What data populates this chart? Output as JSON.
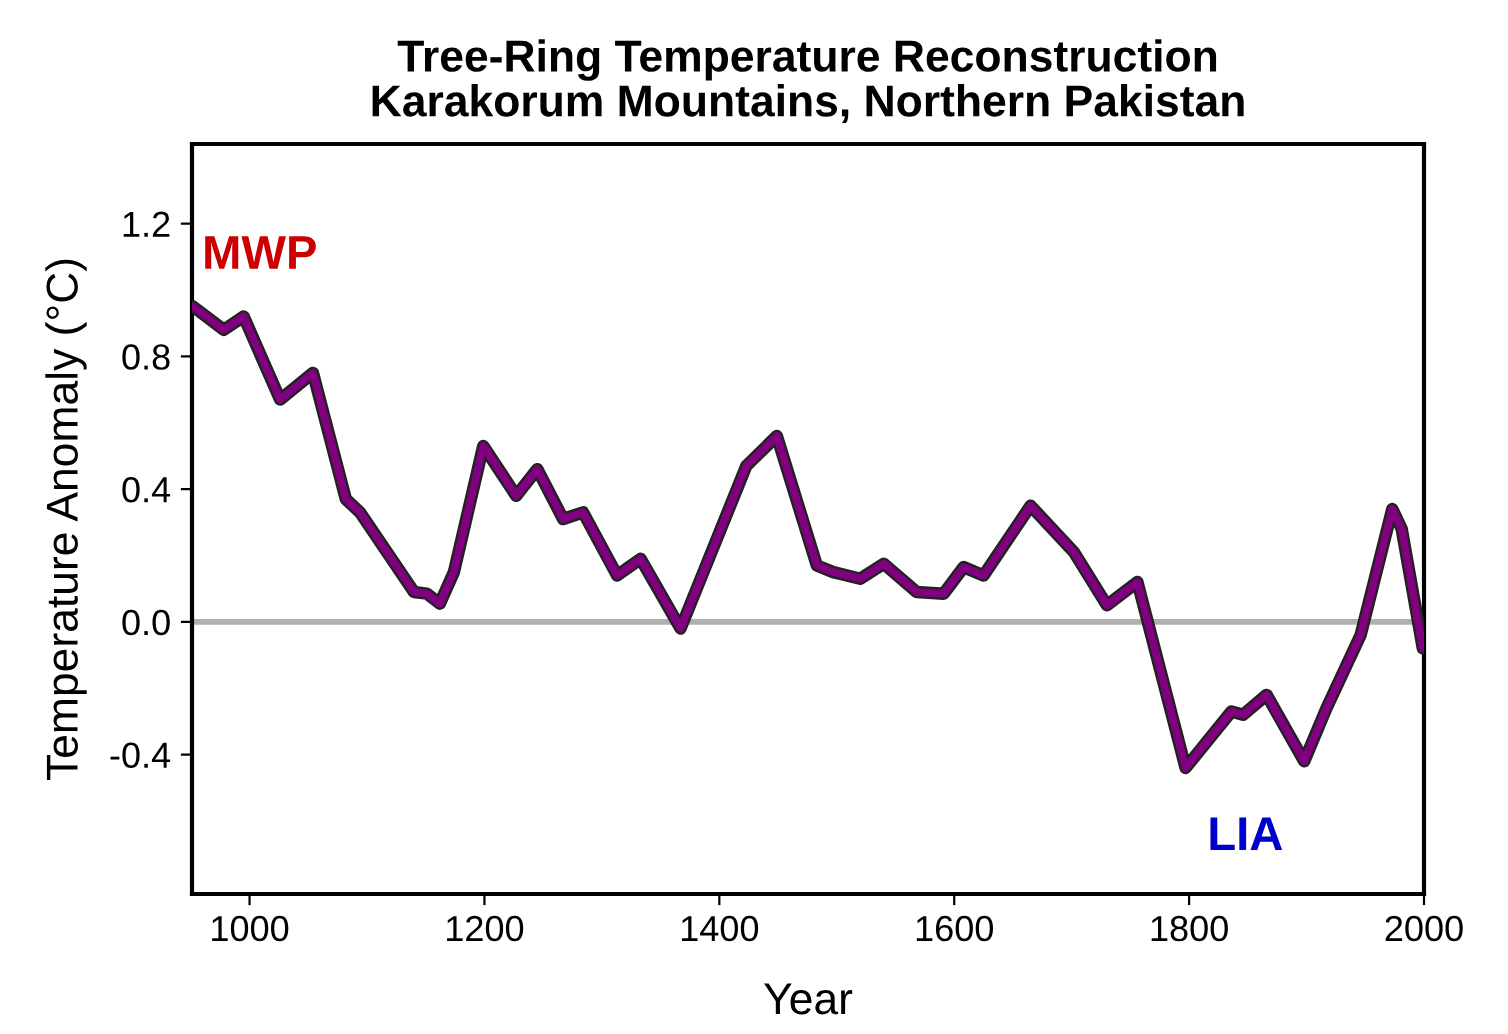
{
  "chart_data": {
    "type": "line",
    "title": "Tree-Ring Temperature Reconstruction\nKarakorum Mountains, Northern Pakistan",
    "xlabel": "Year",
    "ylabel": "Temperature Anomaly (°C)",
    "xlim": [
      951,
      2000
    ],
    "xticks": [
      1000,
      1200,
      1400,
      1600,
      1800,
      2000
    ],
    "ylim": [
      -0.82,
      1.44
    ],
    "yticks": [
      {
        "value": -0.4,
        "label": "-0.4"
      },
      {
        "value": 0,
        "label": "0.0"
      },
      0.4,
      0.8,
      1.2
    ],
    "grid": false,
    "legend": false,
    "marker": "none",
    "line_style": "solid",
    "series": [
      {
        "color": "#800080",
        "x": [
          952,
          978,
          995,
          1026,
          1054,
          1082,
          1094,
          1140,
          1151,
          1162,
          1174,
          1199,
          1227,
          1245,
          1267,
          1284,
          1313,
          1333,
          1367,
          1423,
          1449,
          1483,
          1497,
          1520,
          1540,
          1568,
          1591,
          1608,
          1625,
          1665,
          1702,
          1730,
          1756,
          1797,
          1836,
          1846,
          1866,
          1898,
          1917,
          1946,
          1973,
          1981,
          1999
        ],
        "values": [
          0.95,
          0.88,
          0.92,
          0.67,
          0.75,
          0.37,
          0.33,
          0.09,
          0.085,
          0.055,
          0.15,
          0.53,
          0.38,
          0.46,
          0.31,
          0.33,
          0.14,
          0.19,
          -0.02,
          0.47,
          0.56,
          0.17,
          0.15,
          0.13,
          0.175,
          0.09,
          0.085,
          0.165,
          0.14,
          0.35,
          0.21,
          0.05,
          0.12,
          -0.44,
          -0.27,
          -0.28,
          -0.22,
          -0.42,
          -0.26,
          -0.04,
          0.34,
          0.28,
          -0.08
        ]
      }
    ],
    "ref_lines": [
      {
        "axis": "y",
        "value": 0,
        "color": "#b0b0b0"
      }
    ],
    "annotations": [
      "MWP",
      "LIA"
    ]
  }
}
